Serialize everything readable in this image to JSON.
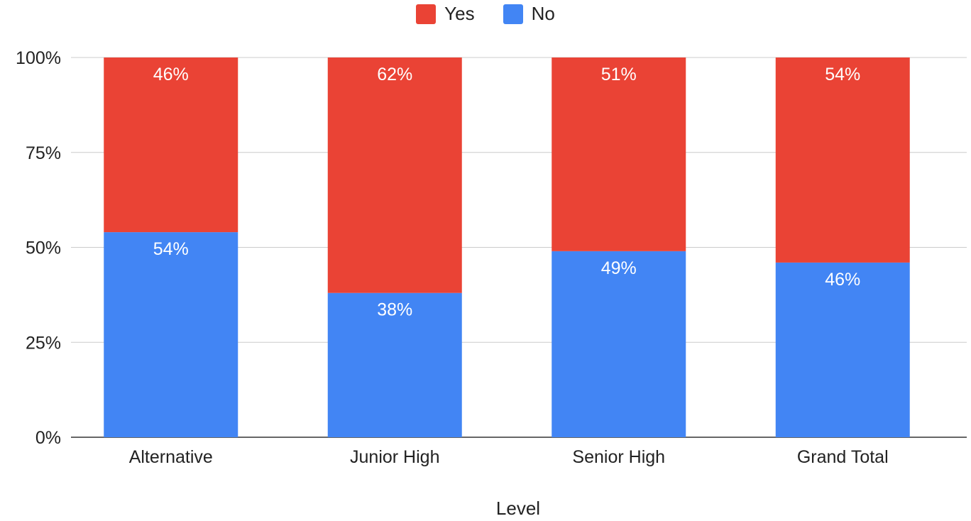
{
  "chart_data": {
    "type": "bar",
    "stacked": "percent",
    "title": "",
    "xlabel": "Level",
    "ylabel": "",
    "categories": [
      "Alternative",
      "Junior High",
      "Senior High",
      "Grand Total"
    ],
    "series": [
      {
        "name": "No",
        "color": "#4285f4",
        "values": [
          54,
          38,
          49,
          46
        ],
        "labels": [
          "54%",
          "38%",
          "49%",
          "46%"
        ]
      },
      {
        "name": "Yes",
        "color": "#ea4335",
        "values": [
          46,
          62,
          51,
          54
        ],
        "labels": [
          "46%",
          "62%",
          "51%",
          "54%"
        ]
      }
    ],
    "ylim": [
      0,
      100
    ],
    "yticks": [
      0,
      25,
      50,
      75,
      100
    ],
    "ytick_labels": [
      "0%",
      "25%",
      "50%",
      "75%",
      "100%"
    ],
    "legend": {
      "position": "top",
      "entries": [
        "Yes",
        "No"
      ]
    },
    "grid": true
  }
}
